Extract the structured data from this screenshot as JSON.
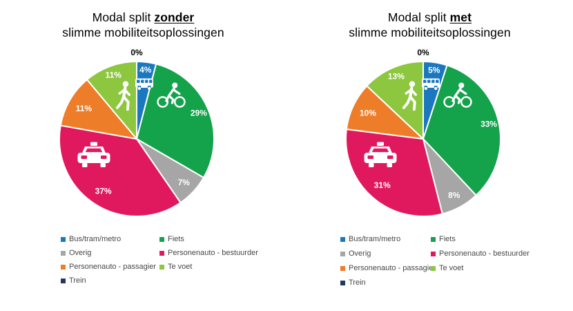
{
  "colors": {
    "bus_tram_metro": "#1B78BE",
    "fiets": "#14A24B",
    "overig": "#A6A6A6",
    "personenauto_bestuurder": "#E0195E",
    "personenauto_passagier": "#EE7D2A",
    "te_voet": "#8DC63F",
    "trein": "#1F3864",
    "label_inside": "#FFFFFF",
    "label_outside": "#000000",
    "legend_text": "#474747",
    "title_text": "#000000"
  },
  "chart_data": [
    {
      "type": "pie",
      "title_prefix": "Modal split",
      "title_keyword": "zonder",
      "title_line2": "slimme mobiliteitsoplossingen",
      "legend_position": "bottom",
      "direction": "clockwise",
      "start_angle_deg": 0,
      "categories": [
        "Bus/tram/metro",
        "Fiets",
        "Overig",
        "Personenauto - bestuurder",
        "Personenauto - passagier",
        "Te voet",
        "Trein"
      ],
      "values": [
        4,
        29,
        7,
        37,
        11,
        11,
        0
      ],
      "labels": [
        "4%",
        "29%",
        "7%",
        "37%",
        "11%",
        "11%",
        "0%"
      ],
      "colors": [
        "#1B78BE",
        "#14A24B",
        "#A6A6A6",
        "#E0195E",
        "#EE7D2A",
        "#8DC63F",
        "#1F3864"
      ],
      "icons": [
        "bus-icon",
        "cyclist-icon",
        null,
        "car-icon",
        null,
        "pedestrian-icon",
        null
      ]
    },
    {
      "type": "pie",
      "title_prefix": "Modal split",
      "title_keyword": "met",
      "title_line2": "slimme mobiliteitsoplossingen",
      "legend_position": "bottom",
      "direction": "clockwise",
      "start_angle_deg": 0,
      "categories": [
        "Bus/tram/metro",
        "Fiets",
        "Overig",
        "Personenauto - bestuurder",
        "Personenauto - passagier",
        "Te voet",
        "Trein"
      ],
      "values": [
        5,
        33,
        8,
        31,
        10,
        13,
        0
      ],
      "labels": [
        "5%",
        "33%",
        "8%",
        "31%",
        "10%",
        "13%",
        "0%"
      ],
      "colors": [
        "#1B78BE",
        "#14A24B",
        "#A6A6A6",
        "#E0195E",
        "#EE7D2A",
        "#8DC63F",
        "#1F3864"
      ],
      "icons": [
        "bus-icon",
        "cyclist-icon",
        null,
        "car-icon",
        null,
        "pedestrian-icon",
        null
      ]
    }
  ]
}
